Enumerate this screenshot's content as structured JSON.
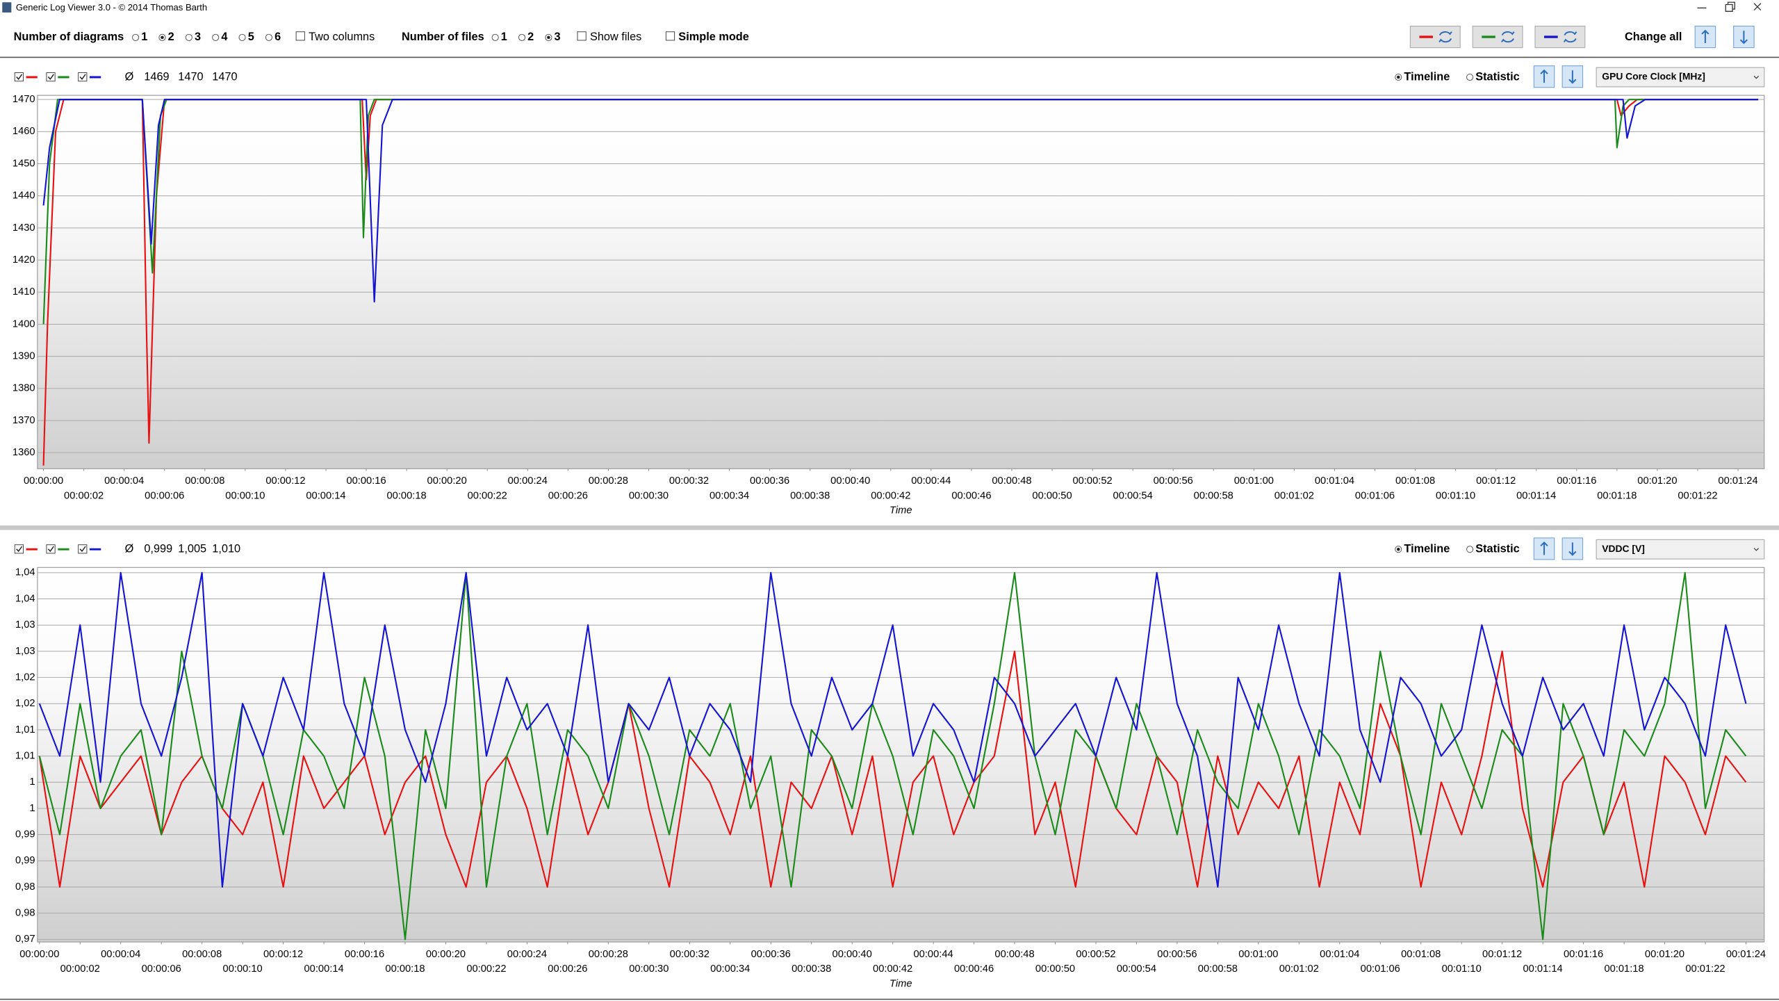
{
  "window": {
    "title": "Generic Log Viewer 3.0 - © 2014 Thomas Barth"
  },
  "toolbar": {
    "diagrams_label": "Number of diagrams",
    "diagram_options": [
      "1",
      "2",
      "3",
      "4",
      "5",
      "6"
    ],
    "diagrams_selected": "2",
    "two_columns": "Two columns",
    "files_label": "Number of files",
    "file_options": [
      "1",
      "2",
      "3"
    ],
    "files_selected": "3",
    "show_files": "Show files",
    "simple_mode": "Simple mode",
    "change_all": "Change all"
  },
  "chart_data": [
    {
      "type": "line",
      "sensor": "GPU Core Clock [MHz]",
      "mode_options": [
        "Timeline",
        "Statistic"
      ],
      "mode_selected": "Timeline",
      "average_symbol": "Ø",
      "x_label": "Time",
      "xlim": [
        -0.3,
        85.3
      ],
      "ylim": [
        1355,
        1471.3
      ],
      "grid": true,
      "yticks": [
        1360,
        1370,
        1380,
        1390,
        1400,
        1410,
        1420,
        1430,
        1440,
        1450,
        1460,
        1470
      ],
      "xticks": [
        {
          "value": 0,
          "label": "00:00:00"
        },
        {
          "value": 2,
          "label": "00:00:02"
        },
        {
          "value": 4,
          "label": "00:00:04"
        },
        {
          "value": 6,
          "label": "00:00:06"
        },
        {
          "value": 8,
          "label": "00:00:08"
        },
        {
          "value": 10,
          "label": "00:00:10"
        },
        {
          "value": 12,
          "label": "00:00:12"
        },
        {
          "value": 14,
          "label": "00:00:14"
        },
        {
          "value": 16,
          "label": "00:00:16"
        },
        {
          "value": 18,
          "label": "00:00:18"
        },
        {
          "value": 20,
          "label": "00:00:20"
        },
        {
          "value": 22,
          "label": "00:00:22"
        },
        {
          "value": 24,
          "label": "00:00:24"
        },
        {
          "value": 26,
          "label": "00:00:26"
        },
        {
          "value": 28,
          "label": "00:00:28"
        },
        {
          "value": 30,
          "label": "00:00:30"
        },
        {
          "value": 32,
          "label": "00:00:32"
        },
        {
          "value": 34,
          "label": "00:00:34"
        },
        {
          "value": 36,
          "label": "00:00:36"
        },
        {
          "value": 38,
          "label": "00:00:38"
        },
        {
          "value": 40,
          "label": "00:00:40"
        },
        {
          "value": 42,
          "label": "00:00:42"
        },
        {
          "value": 44,
          "label": "00:00:44"
        },
        {
          "value": 46,
          "label": "00:00:46"
        },
        {
          "value": 48,
          "label": "00:00:48"
        },
        {
          "value": 50,
          "label": "00:00:50"
        },
        {
          "value": 52,
          "label": "00:00:52"
        },
        {
          "value": 54,
          "label": "00:00:54"
        },
        {
          "value": 56,
          "label": "00:00:56"
        },
        {
          "value": 58,
          "label": "00:00:58"
        },
        {
          "value": 60,
          "label": "00:01:00"
        },
        {
          "value": 62,
          "label": "00:01:02"
        },
        {
          "value": 64,
          "label": "00:01:04"
        },
        {
          "value": 66,
          "label": "00:01:06"
        },
        {
          "value": 68,
          "label": "00:01:08"
        },
        {
          "value": 70,
          "label": "00:01:10"
        },
        {
          "value": 72,
          "label": "00:01:12"
        },
        {
          "value": 74,
          "label": "00:01:14"
        },
        {
          "value": 76,
          "label": "00:01:16"
        },
        {
          "value": 78,
          "label": "00:01:18"
        },
        {
          "value": 80,
          "label": "00:01:20"
        },
        {
          "value": 82,
          "label": "00:01:22"
        },
        {
          "value": 84,
          "label": "00:01:24"
        }
      ],
      "series": [
        {
          "color": "#e81010",
          "average": "1469",
          "x": [
            0,
            0.2,
            0.6,
            1,
            1.5,
            4.9,
            5.1,
            5.23,
            5.6,
            6,
            15.8,
            16.0,
            16.2,
            16.5,
            78.0,
            78.2,
            78.6,
            79.0,
            85
          ],
          "values": [
            1356,
            1400,
            1460,
            1470,
            1470,
            1470,
            1400,
            1363,
            1440,
            1470,
            1470,
            1445,
            1465,
            1470,
            1470,
            1465,
            1468,
            1470,
            1470
          ]
        },
        {
          "color": "#1a8a1a",
          "average": "1470",
          "x": [
            0,
            0.3,
            0.7,
            4.9,
            5.4,
            5.8,
            6.1,
            15.7,
            15.86,
            16.1,
            16.4,
            77.9,
            78.0,
            78.3,
            78.6,
            85
          ],
          "values": [
            1400,
            1450,
            1470,
            1470,
            1416,
            1465,
            1470,
            1470,
            1427,
            1465,
            1470,
            1470,
            1455,
            1468,
            1470,
            1470
          ]
        },
        {
          "color": "#1414d2",
          "average": "1470",
          "x": [
            0,
            0.3,
            0.8,
            4.9,
            5.34,
            5.7,
            6.0,
            16.0,
            16.4,
            16.8,
            17.3,
            78.3,
            78.5,
            78.9,
            79.4,
            85
          ],
          "values": [
            1437,
            1455,
            1470,
            1470,
            1425,
            1462,
            1470,
            1470,
            1407,
            1462,
            1470,
            1470,
            1458,
            1468,
            1470,
            1470
          ]
        }
      ]
    },
    {
      "type": "line",
      "sensor": "VDDC [V]",
      "mode_options": [
        "Timeline",
        "Statistic"
      ],
      "mode_selected": "Timeline",
      "average_symbol": "Ø",
      "x_label": "Time",
      "xlim": [
        -0.1,
        84.9
      ],
      "ylim": [
        0.9695,
        1.041
      ],
      "grid": true,
      "yticks": [
        {
          "value": 0.97,
          "label": "0,97"
        },
        {
          "value": 0.975,
          "label": "0,98"
        },
        {
          "value": 0.98,
          "label": "0,98"
        },
        {
          "value": 0.985,
          "label": "0,99"
        },
        {
          "value": 0.99,
          "label": "0,99"
        },
        {
          "value": 0.995,
          "label": "1"
        },
        1,
        {
          "value": 1.005,
          "label": "1,01"
        },
        {
          "value": 1.01,
          "label": "1,01"
        },
        {
          "value": 1.015,
          "label": "1,02"
        },
        {
          "value": 1.02,
          "label": "1,02"
        },
        {
          "value": 1.025,
          "label": "1,03"
        },
        {
          "value": 1.03,
          "label": "1,03"
        },
        {
          "value": 1.035,
          "label": "1,04"
        },
        {
          "value": 1.04,
          "label": "1,04"
        }
      ],
      "xticks": [
        {
          "value": 0,
          "label": "00:00:00"
        },
        {
          "value": 2,
          "label": "00:00:02"
        },
        {
          "value": 4,
          "label": "00:00:04"
        },
        {
          "value": 6,
          "label": "00:00:06"
        },
        {
          "value": 8,
          "label": "00:00:08"
        },
        {
          "value": 10,
          "label": "00:00:10"
        },
        {
          "value": 12,
          "label": "00:00:12"
        },
        {
          "value": 14,
          "label": "00:00:14"
        },
        {
          "value": 16,
          "label": "00:00:16"
        },
        {
          "value": 18,
          "label": "00:00:18"
        },
        {
          "value": 20,
          "label": "00:00:20"
        },
        {
          "value": 22,
          "label": "00:00:22"
        },
        {
          "value": 24,
          "label": "00:00:24"
        },
        {
          "value": 26,
          "label": "00:00:26"
        },
        {
          "value": 28,
          "label": "00:00:28"
        },
        {
          "value": 30,
          "label": "00:00:30"
        },
        {
          "value": 32,
          "label": "00:00:32"
        },
        {
          "value": 34,
          "label": "00:00:34"
        },
        {
          "value": 36,
          "label": "00:00:36"
        },
        {
          "value": 38,
          "label": "00:00:38"
        },
        {
          "value": 40,
          "label": "00:00:40"
        },
        {
          "value": 42,
          "label": "00:00:42"
        },
        {
          "value": 44,
          "label": "00:00:44"
        },
        {
          "value": 46,
          "label": "00:00:46"
        },
        {
          "value": 48,
          "label": "00:00:48"
        },
        {
          "value": 50,
          "label": "00:00:50"
        },
        {
          "value": 52,
          "label": "00:00:52"
        },
        {
          "value": 54,
          "label": "00:00:54"
        },
        {
          "value": 56,
          "label": "00:00:56"
        },
        {
          "value": 58,
          "label": "00:00:58"
        },
        {
          "value": 60,
          "label": "00:01:00"
        },
        {
          "value": 62,
          "label": "00:01:02"
        },
        {
          "value": 64,
          "label": "00:01:04"
        },
        {
          "value": 66,
          "label": "00:01:06"
        },
        {
          "value": 68,
          "label": "00:01:08"
        },
        {
          "value": 70,
          "label": "00:01:10"
        },
        {
          "value": 72,
          "label": "00:01:12"
        },
        {
          "value": 74,
          "label": "00:01:14"
        },
        {
          "value": 76,
          "label": "00:01:16"
        },
        {
          "value": 78,
          "label": "00:01:18"
        },
        {
          "value": 80,
          "label": "00:01:20"
        },
        {
          "value": 82,
          "label": "00:01:22"
        },
        {
          "value": 84,
          "label": "00:01:24"
        }
      ],
      "x": [
        0,
        1,
        2,
        3,
        4,
        5,
        6,
        7,
        8,
        9,
        10,
        11,
        12,
        13,
        14,
        15,
        16,
        17,
        18,
        19,
        20,
        21,
        22,
        23,
        24,
        25,
        26,
        27,
        28,
        29,
        30,
        31,
        32,
        33,
        34,
        35,
        36,
        37,
        38,
        39,
        40,
        41,
        42,
        43,
        44,
        45,
        46,
        47,
        48,
        49,
        50,
        51,
        52,
        53,
        54,
        55,
        56,
        57,
        58,
        59,
        60,
        61,
        62,
        63,
        64,
        65,
        66,
        67,
        68,
        69,
        70,
        71,
        72,
        73,
        74,
        75,
        76,
        77,
        78,
        79,
        80,
        81,
        82,
        83,
        84
      ],
      "series": [
        {
          "color": "#e81010",
          "average": "0,999",
          "values": [
            1.005,
            0.98,
            1.005,
            0.995,
            1.0,
            1.005,
            0.99,
            1.0,
            1.005,
            0.995,
            0.99,
            1.0,
            0.98,
            1.005,
            0.995,
            1.0,
            1.005,
            0.99,
            1.0,
            1.005,
            0.99,
            0.98,
            1.0,
            1.005,
            0.995,
            0.98,
            1.005,
            0.99,
            1.0,
            1.015,
            0.995,
            0.98,
            1.005,
            1.0,
            0.99,
            1.005,
            0.98,
            1.0,
            0.995,
            1.005,
            0.99,
            1.005,
            0.98,
            1.0,
            1.005,
            0.99,
            1.0,
            1.005,
            1.025,
            0.99,
            1.0,
            0.98,
            1.005,
            0.995,
            0.99,
            1.005,
            1.0,
            0.98,
            1.005,
            0.99,
            1.0,
            0.995,
            1.005,
            0.98,
            1.0,
            0.99,
            1.015,
            1.005,
            0.98,
            1.0,
            0.99,
            1.005,
            1.025,
            0.995,
            0.98,
            1.0,
            1.005,
            0.99,
            1.0,
            0.98,
            1.005,
            1.0,
            0.99,
            1.005,
            1.0
          ]
        },
        {
          "color": "#1a8a1a",
          "average": "1,005",
          "values": [
            1.005,
            0.99,
            1.015,
            0.995,
            1.005,
            1.01,
            0.99,
            1.025,
            1.005,
            0.995,
            1.015,
            1.005,
            0.99,
            1.01,
            1.005,
            0.995,
            1.02,
            1.005,
            0.97,
            1.01,
            0.995,
            1.04,
            0.98,
            1.005,
            1.015,
            0.99,
            1.01,
            1.005,
            0.995,
            1.015,
            1.005,
            0.99,
            1.01,
            1.005,
            1.015,
            0.995,
            1.005,
            0.98,
            1.01,
            1.005,
            0.995,
            1.015,
            1.005,
            0.99,
            1.01,
            1.005,
            0.995,
            1.015,
            1.04,
            1.005,
            0.99,
            1.01,
            1.005,
            0.995,
            1.015,
            1.005,
            0.99,
            1.01,
            1.0,
            0.995,
            1.015,
            1.005,
            0.99,
            1.01,
            1.005,
            0.995,
            1.025,
            1.005,
            0.99,
            1.015,
            1.005,
            0.995,
            1.01,
            1.005,
            0.97,
            1.015,
            1.005,
            0.99,
            1.01,
            1.005,
            1.015,
            1.04,
            0.995,
            1.01,
            1.005
          ]
        },
        {
          "color": "#1414d2",
          "average": "1,010",
          "values": [
            1.015,
            1.005,
            1.03,
            1.0,
            1.04,
            1.015,
            1.005,
            1.02,
            1.04,
            0.98,
            1.015,
            1.005,
            1.02,
            1.01,
            1.04,
            1.015,
            1.005,
            1.03,
            1.01,
            1.0,
            1.015,
            1.04,
            1.005,
            1.02,
            1.01,
            1.015,
            1.005,
            1.03,
            1.0,
            1.015,
            1.01,
            1.02,
            1.005,
            1.015,
            1.01,
            1.0,
            1.04,
            1.015,
            1.005,
            1.02,
            1.01,
            1.015,
            1.03,
            1.005,
            1.015,
            1.01,
            1.0,
            1.02,
            1.015,
            1.005,
            1.01,
            1.015,
            1.005,
            1.02,
            1.01,
            1.04,
            1.015,
            1.005,
            0.98,
            1.02,
            1.01,
            1.03,
            1.015,
            1.005,
            1.04,
            1.01,
            1.0,
            1.02,
            1.015,
            1.005,
            1.01,
            1.03,
            1.015,
            1.005,
            1.02,
            1.01,
            1.015,
            1.005,
            1.03,
            1.01,
            1.02,
            1.015,
            1.005,
            1.03,
            1.015
          ]
        }
      ]
    }
  ]
}
